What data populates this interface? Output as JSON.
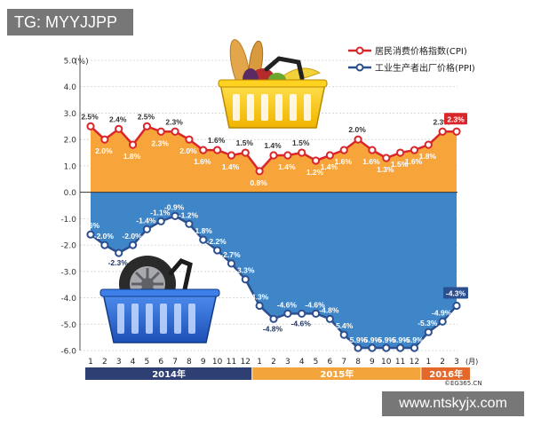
{
  "watermarks": {
    "top_left": "TG: MYYJJPP",
    "bottom_right": "www.ntskyjx.com"
  },
  "colors": {
    "cpi_line": "#d9262b",
    "cpi_fill": "#f7a43a",
    "ppi_line": "#2c4f8f",
    "ppi_fill": "#3f86c9",
    "label_cpi": "#ffffff",
    "label_ppi": "#ffffff",
    "year_2014": "#2e3f73",
    "year_2015": "#f3a53b",
    "year_2016": "#e4682a"
  },
  "icons": [
    "grocery-basket-icon",
    "tire-basket-icon"
  ],
  "chart_data": {
    "type": "line",
    "title": "",
    "y_unit": "(%)",
    "x_unit": "(月)",
    "ylim": [
      -6.0,
      5.0
    ],
    "yticks": [
      "5.0",
      "4.0",
      "3.0",
      "2.0",
      "1.0",
      "0.0",
      "-1.0",
      "-2.0",
      "-3.0",
      "-4.0",
      "-5.0",
      "-6.0"
    ],
    "categories": [
      "1",
      "2",
      "3",
      "4",
      "5",
      "6",
      "7",
      "8",
      "9",
      "10",
      "11",
      "12",
      "1",
      "2",
      "3",
      "4",
      "5",
      "6",
      "7",
      "8",
      "9",
      "10",
      "11",
      "12",
      "1",
      "2",
      "3"
    ],
    "years": [
      {
        "label": "2014年",
        "months": 12
      },
      {
        "label": "2015年",
        "months": 12
      },
      {
        "label": "2016年",
        "months": 3
      }
    ],
    "legend": {
      "cpi": "居民消费价格指数(CPI)",
      "ppi": "工业生产者出厂价格(PPI)"
    },
    "series": [
      {
        "name": "居民消费价格指数(CPI)",
        "values": [
          2.5,
          2.0,
          2.4,
          1.8,
          2.5,
          2.3,
          2.3,
          2.0,
          1.6,
          1.6,
          1.4,
          1.5,
          0.8,
          1.4,
          1.4,
          1.5,
          1.2,
          1.4,
          1.6,
          2.0,
          1.6,
          1.3,
          1.5,
          1.6,
          1.8,
          2.3,
          2.3
        ],
        "labels": [
          "2.5%",
          "2.0%",
          "2.4%",
          "1.8%",
          "2.5%",
          "2.3%",
          "2.3%",
          "2.0%",
          "1.6%",
          "1.6%",
          "1.4%",
          "1.5%",
          "0.8%",
          "1.4%",
          "1.4%",
          "1.5%",
          "1.2%",
          "1.4%",
          "1.6%",
          "2.0%",
          "1.6%",
          "1.3%",
          "1.5%",
          "1.6%",
          "1.8%",
          "2.3%",
          "2.3%"
        ]
      },
      {
        "name": "工业生产者出厂价格(PPI)",
        "values": [
          -1.6,
          -2.0,
          -2.3,
          -2.0,
          -1.4,
          -1.1,
          -0.9,
          -1.2,
          -1.8,
          -2.2,
          -2.7,
          -3.3,
          -4.3,
          -4.8,
          -4.6,
          -4.6,
          -4.6,
          -4.8,
          -5.4,
          -5.9,
          -5.9,
          -5.9,
          -5.9,
          -5.9,
          -5.3,
          -4.9,
          -4.3
        ],
        "labels": [
          "-1.6%",
          "-2.0%",
          "-2.3%",
          "-2.0%",
          "-1.4%",
          "-1.1%",
          "-0.9%",
          "-1.2%",
          "-1.8%",
          "-2.2%",
          "-2.7%",
          "-3.3%",
          "-4.3%",
          "-4.8%",
          "-4.6%",
          "-4.6%",
          "-4.6%",
          "-4.8%",
          "-5.4%",
          "-5.9%",
          "-5.9%",
          "-5.9%",
          "-5.9%",
          "-5.9%",
          "-5.3%",
          "-4.9%",
          "-4.3%"
        ]
      }
    ],
    "source": "©EG365.CN"
  }
}
